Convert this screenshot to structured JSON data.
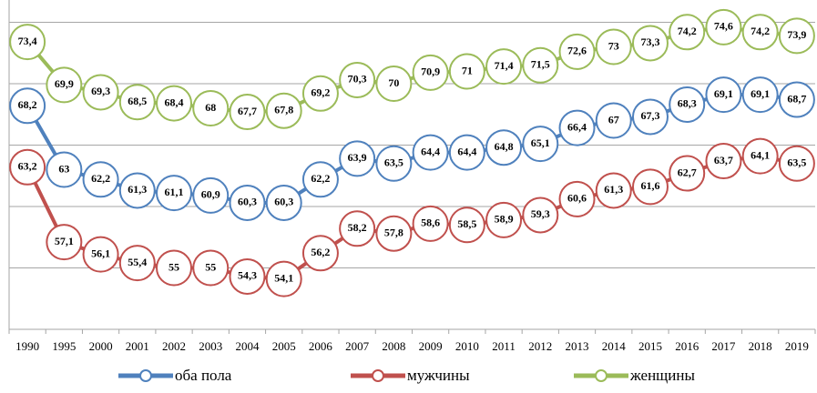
{
  "chart_data": {
    "type": "line",
    "categories": [
      "1990",
      "1995",
      "2000",
      "2001",
      "2002",
      "2003",
      "2004",
      "2005",
      "2006",
      "2007",
      "2008",
      "2009",
      "2010",
      "2011",
      "2012",
      "2013",
      "2014",
      "2015",
      "2016",
      "2017",
      "2018",
      "2019"
    ],
    "series": [
      {
        "name": "оба пола",
        "color": "#4f81bd",
        "values": [
          68.2,
          63,
          62.2,
          61.3,
          61.1,
          60.9,
          60.3,
          60.3,
          62.2,
          63.9,
          63.5,
          64.4,
          64.4,
          64.8,
          65.1,
          66.4,
          67,
          67.3,
          68.3,
          69.1,
          69.1,
          68.7
        ],
        "value_labels": [
          "68,2",
          "63",
          "62,2",
          "61,3",
          "61,1",
          "60,9",
          "60,3",
          "60,3",
          "62,2",
          "63,9",
          "63,5",
          "64,4",
          "64,4",
          "64,8",
          "65,1",
          "66,4",
          "67",
          "67,3",
          "68,3",
          "69,1",
          "69,1",
          "68,7"
        ]
      },
      {
        "name": "мужчины",
        "color": "#c0504d",
        "values": [
          63.2,
          57.1,
          56.1,
          55.4,
          55,
          55,
          54.3,
          54.1,
          56.2,
          58.2,
          57.8,
          58.6,
          58.5,
          58.9,
          59.3,
          60.6,
          61.3,
          61.6,
          62.7,
          63.7,
          64.1,
          63.5
        ],
        "value_labels": [
          "63,2",
          "57,1",
          "56,1",
          "55,4",
          "55",
          "55",
          "54,3",
          "54,1",
          "56,2",
          "58,2",
          "57,8",
          "58,6",
          "58,5",
          "58,9",
          "59,3",
          "60,6",
          "61,3",
          "61,6",
          "62,7",
          "63,7",
          "64,1",
          "63,5"
        ]
      },
      {
        "name": "женщины",
        "color": "#9bbb59",
        "values": [
          73.4,
          69.9,
          69.3,
          68.5,
          68.4,
          68,
          67.7,
          67.8,
          69.2,
          70.3,
          70,
          70.9,
          71,
          71.4,
          71.5,
          72.6,
          73,
          73.3,
          74.2,
          74.6,
          74.2,
          73.9
        ],
        "value_labels": [
          "73,4",
          "69,9",
          "69,3",
          "68,5",
          "68,4",
          "68",
          "67,7",
          "67,8",
          "69,2",
          "70,3",
          "70",
          "70,9",
          "71",
          "71,4",
          "71,5",
          "72,6",
          "73",
          "73,3",
          "74,2",
          "74,6",
          "74,2",
          "73,9"
        ]
      }
    ],
    "ylim": [
      50,
      76
    ],
    "yticks": [
      50,
      55,
      60,
      65,
      70,
      75
    ],
    "grid": true,
    "legend": "bottom"
  }
}
